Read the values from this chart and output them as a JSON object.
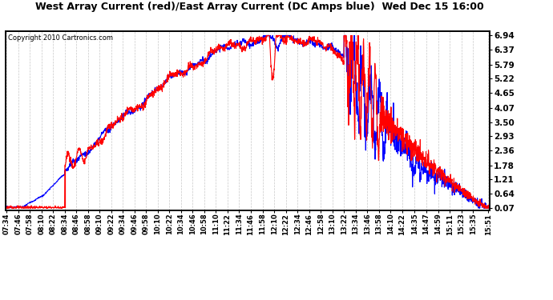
{
  "title": "West Array Current (red)/East Array Current (DC Amps blue)  Wed Dec 15 16:00",
  "copyright": "Copyright 2010 Cartronics.com",
  "ylabel_right": [
    "6.94",
    "6.37",
    "5.79",
    "5.22",
    "4.65",
    "4.07",
    "3.50",
    "2.93",
    "2.36",
    "1.78",
    "1.21",
    "0.64",
    "0.07"
  ],
  "ymin": 0.07,
  "ymax": 6.94,
  "background_color": "#ffffff",
  "grid_color": "#cccccc",
  "red_color": "#ff0000",
  "blue_color": "#0000ff",
  "x_labels": [
    "07:34",
    "07:46",
    "07:58",
    "08:10",
    "08:22",
    "08:34",
    "08:46",
    "08:58",
    "09:10",
    "09:22",
    "09:34",
    "09:46",
    "09:58",
    "10:10",
    "10:22",
    "10:34",
    "10:46",
    "10:58",
    "11:10",
    "11:22",
    "11:34",
    "11:46",
    "11:58",
    "12:10",
    "12:22",
    "12:34",
    "12:46",
    "12:58",
    "13:10",
    "13:22",
    "13:34",
    "13:46",
    "13:58",
    "14:10",
    "14:22",
    "14:35",
    "14:47",
    "14:59",
    "15:11",
    "15:23",
    "15:35",
    "15:51"
  ]
}
